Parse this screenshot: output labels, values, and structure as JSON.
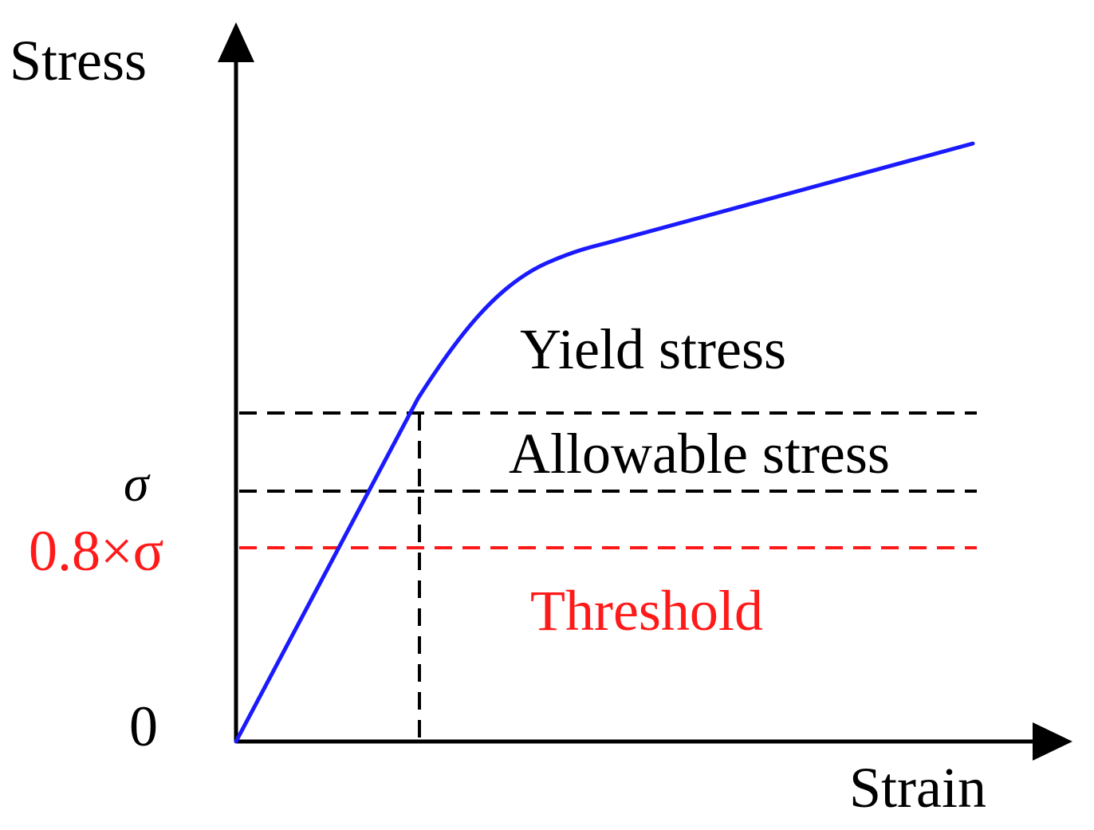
{
  "axes": {
    "y_label": "Stress",
    "x_label": "Strain",
    "origin_label": "0",
    "sigma_label": "σ",
    "threshold_level_label": "0.8×σ"
  },
  "regions": {
    "yield_label": "Yield stress",
    "allowable_label": "Allowable stress",
    "threshold_label": "Threshold"
  },
  "colors": {
    "curve": "#1a1aff",
    "threshold": "#ff1a1a",
    "axis": "#000000",
    "text": "#000000"
  }
}
